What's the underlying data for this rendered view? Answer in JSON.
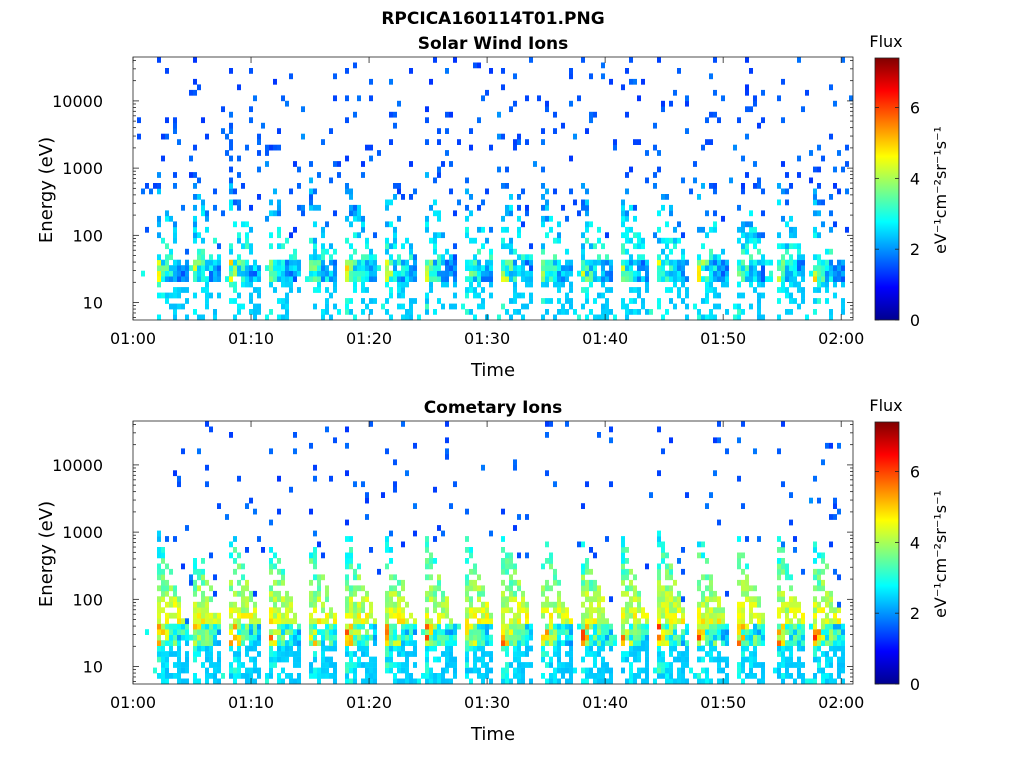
{
  "figure": {
    "title": "RPCICA160114T01.PNG"
  },
  "chart_data": [
    {
      "type": "heatmap",
      "title": "Solar Wind Ions",
      "xlabel": "Time",
      "ylabel": "Energy (eV)",
      "x_ticks": [
        "01:00",
        "01:10",
        "01:20",
        "01:30",
        "01:40",
        "01:50",
        "02:00"
      ],
      "x_range": [
        "01:00",
        "02:01"
      ],
      "y_scale": "log",
      "y_ticks": [
        "10",
        "100",
        "1000",
        "10000"
      ],
      "y_range": [
        5.5,
        45000
      ],
      "colorbar": {
        "title": "Flux",
        "label": "eV⁻¹cm⁻²sr⁻¹s⁻¹",
        "range": [
          0,
          7.4
        ],
        "ticks": [
          "0",
          "2",
          "4",
          "6"
        ],
        "colormap": "jet"
      },
      "sweep_start_minutes": [
        2,
        5,
        8.3,
        11.5,
        14.8,
        18.1,
        21.4,
        24.7,
        28,
        31.3,
        34.6,
        37.9,
        41.2,
        44.5,
        47.8,
        51.1,
        54.4,
        57.7
      ],
      "peak_energy_ev": 30,
      "peak_flux": 5.2
    },
    {
      "type": "heatmap",
      "title": "Cometary Ions",
      "xlabel": "Time",
      "ylabel": "Energy (eV)",
      "x_ticks": [
        "01:00",
        "01:10",
        "01:20",
        "01:30",
        "01:40",
        "01:50",
        "02:00"
      ],
      "x_range": [
        "01:00",
        "02:01"
      ],
      "y_scale": "log",
      "y_ticks": [
        "10",
        "100",
        "1000",
        "10000"
      ],
      "y_range": [
        5.5,
        45000
      ],
      "colorbar": {
        "title": "Flux",
        "label": "eV⁻¹cm⁻²sr⁻¹s⁻¹",
        "range": [
          0,
          7.4
        ],
        "ticks": [
          "0",
          "2",
          "4",
          "6"
        ],
        "colormap": "jet"
      },
      "sweep_start_minutes": [
        2,
        5,
        8.3,
        11.5,
        14.8,
        18.1,
        21.4,
        24.7,
        28,
        31.3,
        34.6,
        37.9,
        41.2,
        44.5,
        47.8,
        51.1,
        54.4,
        57.7
      ],
      "peak_energy_ev": 30,
      "peak_flux": 6.8
    }
  ]
}
